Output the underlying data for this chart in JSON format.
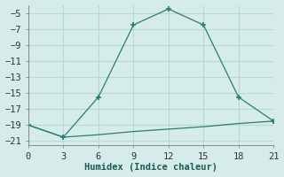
{
  "line1_x": [
    0,
    3,
    6,
    9,
    12,
    15,
    18,
    21
  ],
  "line1_y": [
    -19,
    -20.5,
    -15.5,
    -6.5,
    -4.5,
    -6.5,
    -15.5,
    -18.5
  ],
  "line2_x": [
    0,
    3,
    6,
    9,
    12,
    15,
    18,
    21
  ],
  "line2_y": [
    -19,
    -20.5,
    -20.2,
    -19.8,
    -19.5,
    -19.2,
    -18.8,
    -18.5
  ],
  "line_color": "#2a7d70",
  "xlabel": "Humidex (Indice chaleur)",
  "xlim": [
    0,
    21
  ],
  "ylim": [
    -21.5,
    -4
  ],
  "xticks": [
    0,
    3,
    6,
    9,
    12,
    15,
    18,
    21
  ],
  "yticks": [
    -5,
    -7,
    -9,
    -11,
    -13,
    -15,
    -17,
    -19,
    -21
  ],
  "background_color": "#d5ecea",
  "grid_color": "#b8d8d4",
  "tick_fontsize": 7.5
}
